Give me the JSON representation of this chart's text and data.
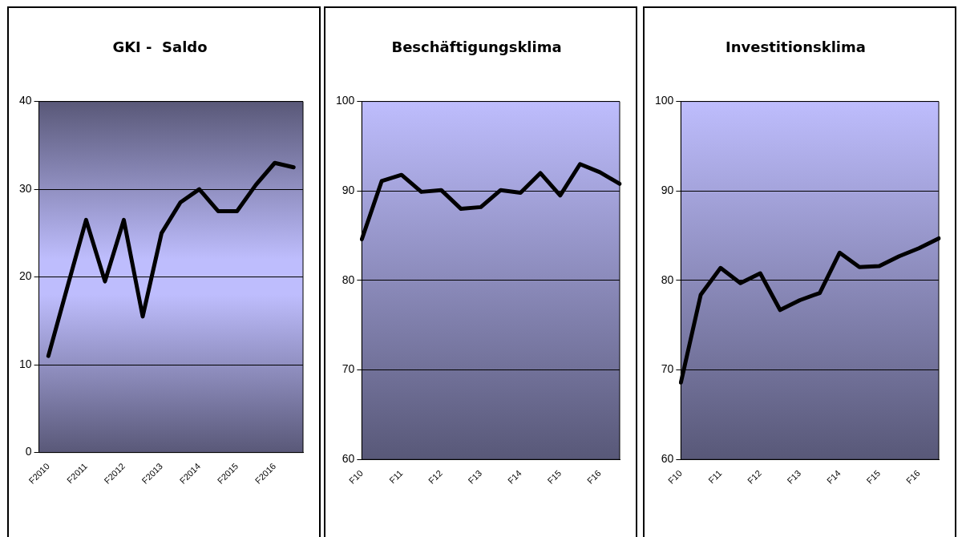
{
  "chart_data": [
    {
      "type": "line",
      "title": "GKI -  Saldo",
      "categories": [
        "F2010",
        null,
        "F2011",
        null,
        "F2012",
        null,
        "F2013",
        null,
        "F2014",
        null,
        "F2015",
        null,
        "F2016",
        null
      ],
      "series": [
        {
          "color": "#000000",
          "values": [
            11,
            18.8,
            26.5,
            19.5,
            26.5,
            15.5,
            25,
            28.5,
            30,
            27.5,
            27.5,
            30.5,
            33,
            32.5
          ]
        }
      ],
      "ylim": [
        0,
        40
      ],
      "yticks": [
        0,
        10,
        20,
        30,
        40
      ],
      "grid": "y",
      "legend": false,
      "marker": "none"
    },
    {
      "type": "line",
      "title": "Beschäftigungsklima",
      "categories": [
        "F10",
        null,
        "F11",
        null,
        "F12",
        null,
        "F13",
        null,
        "F14",
        null,
        "F15",
        null,
        "F16",
        null
      ],
      "series": [
        {
          "color": "#000000",
          "values": [
            84.6,
            91.1,
            91.8,
            89.9,
            90.1,
            88.0,
            88.2,
            90.1,
            89.8,
            92.0,
            89.5,
            93.0,
            92.1,
            90.8
          ]
        }
      ],
      "ylim": [
        60,
        100
      ],
      "yticks": [
        60,
        70,
        80,
        90,
        100
      ],
      "grid": "y",
      "legend": false,
      "marker": "none"
    },
    {
      "type": "line",
      "title": "Investitionsklima",
      "categories": [
        "F10",
        null,
        "F11",
        null,
        "F12",
        null,
        "F13",
        null,
        "F14",
        null,
        "F15",
        null,
        "F16",
        null
      ],
      "series": [
        {
          "color": "#000000",
          "values": [
            68.6,
            78.4,
            81.4,
            79.7,
            80.8,
            76.7,
            77.8,
            78.6,
            83.1,
            81.5,
            81.6,
            82.7,
            83.6,
            84.7
          ]
        }
      ],
      "ylim": [
        60,
        100
      ],
      "yticks": [
        60,
        70,
        80,
        90,
        100
      ],
      "grid": "y",
      "legend": false,
      "marker": "none"
    }
  ]
}
